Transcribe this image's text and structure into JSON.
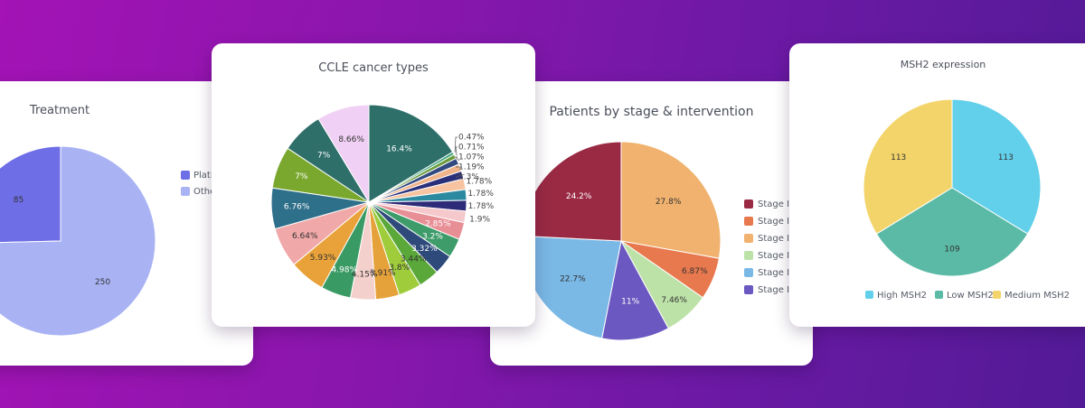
{
  "chart_data": [
    {
      "id": "treatment",
      "type": "pie",
      "title": "Treatment",
      "labels": [
        "Platinum",
        "Other"
      ],
      "values": [
        85,
        250
      ],
      "colors": [
        "#6e6ee6",
        "#a9b3f4"
      ],
      "legend": "right"
    },
    {
      "id": "ccle",
      "type": "pie",
      "title": "CCLE cancer types",
      "values": [
        16.4,
        0.47,
        0.71,
        1.07,
        1.19,
        1.3,
        1.78,
        1.78,
        1.78,
        1.9,
        2.85,
        3.2,
        3.32,
        3.44,
        3.8,
        3.91,
        4.15,
        4.98,
        5.93,
        6.64,
        6.76,
        7,
        7,
        8.66
      ],
      "labels": [
        "16.4%",
        "0.47%",
        "0.71%",
        "1.07%",
        "1.19%",
        "1.3%",
        "1.78%",
        "1.78%",
        "1.78%",
        "1.9%",
        "2.85%",
        "3.2%",
        "3.32%",
        "3.44%",
        "3.8%",
        "3.91%",
        "4.15%",
        "4.98%",
        "5.93%",
        "6.64%",
        "6.76%",
        "7%",
        "7%",
        "8.66%"
      ],
      "colors": [
        "#2f6f6a",
        "#3aa17a",
        "#6a9a3a",
        "#334a80",
        "#f0b48a",
        "#2a2f7a",
        "#f7c3a0",
        "#2c8aa0",
        "#2e2b78",
        "#f5c9cc",
        "#e88f96",
        "#3e9c6a",
        "#2d4a7a",
        "#5aa83a",
        "#9fcc3a",
        "#e6a23a",
        "#f4d0cc",
        "#3a9a64",
        "#e9a23a",
        "#f0a8a8",
        "#2e6f8a",
        "#7aa82e",
        "#2f6f6a",
        "#f0d0f4"
      ],
      "text_colors": [
        "#ffffff",
        "",
        "",
        "",
        "",
        "",
        "",
        "",
        "",
        "",
        "#ffffff",
        "#ffffff",
        "#ffffff",
        "#333333",
        "#333333",
        "#333333",
        "#333333",
        "#ffffff",
        "#333333",
        "#333333",
        "#ffffff",
        "#ffffff",
        "#ffffff",
        "#333333"
      ]
    },
    {
      "id": "stage",
      "type": "pie",
      "title": "Patients by stage & intervention",
      "values": [
        27.8,
        6.87,
        7.46,
        11,
        22.7,
        24.2
      ],
      "labels": [
        "27.8%",
        "6.87%",
        "7.46%",
        "11%",
        "22.7%",
        "24.2%"
      ],
      "colors": [
        "#f0b26e",
        "#e8784e",
        "#bde2a8",
        "#6b58c0",
        "#7ab8e6",
        "#9a2a44"
      ],
      "text_colors": [
        "#333333",
        "#333333",
        "#333333",
        "#ffffff",
        "#333333",
        "#ffffff"
      ],
      "legend_items": [
        {
          "label": "Stage II",
          "color": "#9a2a44"
        },
        {
          "label": "Stage II",
          "color": "#e8784e"
        },
        {
          "label": "Stage III",
          "color": "#f0b26e"
        },
        {
          "label": "Stage III",
          "color": "#bde2a8"
        },
        {
          "label": "Stage IV",
          "color": "#7ab8e6"
        },
        {
          "label": "Stage IV",
          "color": "#6b58c0"
        }
      ],
      "legend": "right"
    },
    {
      "id": "msh2",
      "type": "pie",
      "title": "MSH2 expression",
      "labels": [
        "High MSH2",
        "Low MSH2",
        "Medium MSH2"
      ],
      "values": [
        113,
        109,
        113
      ],
      "colors": [
        "#62d0ea",
        "#5bbaa6",
        "#f3d46a"
      ],
      "legend": "bottom"
    }
  ]
}
